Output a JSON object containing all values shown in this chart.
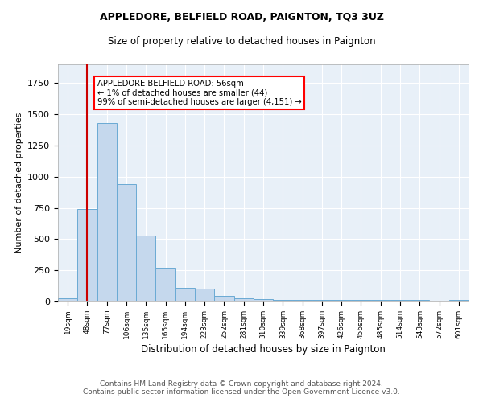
{
  "title": "APPLEDORE, BELFIELD ROAD, PAIGNTON, TQ3 3UZ",
  "subtitle": "Size of property relative to detached houses in Paignton",
  "xlabel": "Distribution of detached houses by size in Paignton",
  "ylabel": "Number of detached properties",
  "bar_color": "#c5d8ed",
  "bar_edge_color": "#6aaad4",
  "background_color": "#e8f0f8",
  "grid_color": "white",
  "categories": [
    "19sqm",
    "48sqm",
    "77sqm",
    "106sqm",
    "135sqm",
    "165sqm",
    "194sqm",
    "223sqm",
    "252sqm",
    "281sqm",
    "310sqm",
    "339sqm",
    "368sqm",
    "397sqm",
    "426sqm",
    "456sqm",
    "485sqm",
    "514sqm",
    "543sqm",
    "572sqm",
    "601sqm"
  ],
  "values": [
    28,
    740,
    1430,
    940,
    530,
    270,
    110,
    100,
    45,
    25,
    20,
    15,
    15,
    10,
    10,
    10,
    10,
    10,
    10,
    5,
    10
  ],
  "vline_x": 1.0,
  "vline_color": "#cc0000",
  "annotation_text": "APPLEDORE BELFIELD ROAD: 56sqm\n← 1% of detached houses are smaller (44)\n99% of semi-detached houses are larger (4,151) →",
  "footer_line1": "Contains HM Land Registry data © Crown copyright and database right 2024.",
  "footer_line2": "Contains public sector information licensed under the Open Government Licence v3.0.",
  "ylim": [
    0,
    1900
  ]
}
